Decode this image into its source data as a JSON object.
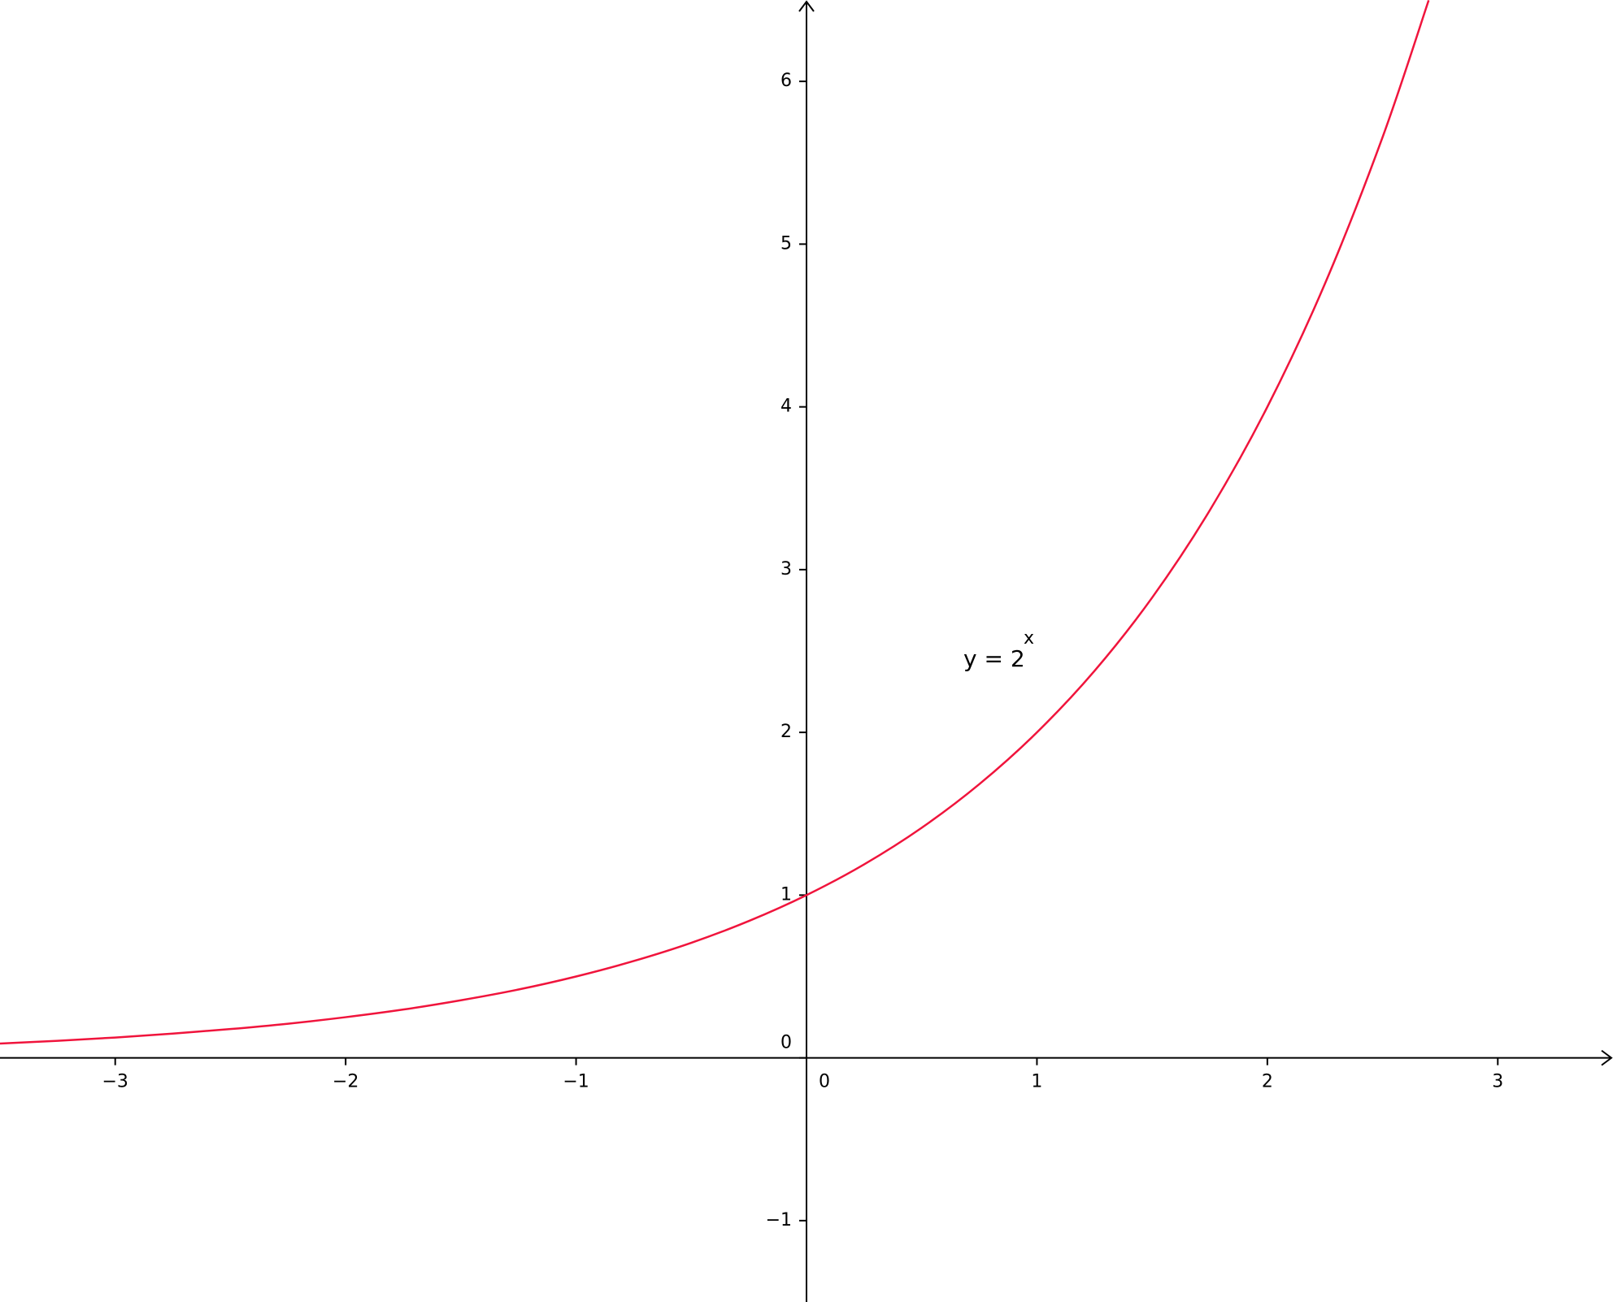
{
  "chart_data": {
    "type": "line",
    "x": [
      -3.5,
      -3.25,
      -3,
      -2.75,
      -2.5,
      -2.25,
      -2,
      -1.75,
      -1.5,
      -1.25,
      -1,
      -0.75,
      -0.5,
      -0.25,
      0,
      0.25,
      0.5,
      0.75,
      1,
      1.25,
      1.5,
      1.75,
      2,
      2.25,
      2.5,
      2.7
    ],
    "series": [
      {
        "color": "#f0143c",
        "values": [
          0.088,
          0.105,
          0.125,
          0.149,
          0.177,
          0.21,
          0.25,
          0.297,
          0.354,
          0.42,
          0.5,
          0.595,
          0.707,
          0.841,
          1,
          1.189,
          1.414,
          1.682,
          2,
          2.378,
          2.828,
          3.364,
          4,
          4.757,
          5.657,
          6.498
        ]
      }
    ],
    "annotation": {
      "text": "y = 2",
      "exponent": "x"
    },
    "xlim": [
      -3.5,
      3.5
    ],
    "ylim": [
      -1.5,
      6.5
    ],
    "xticks": [
      {
        "value": -3,
        "label": "−3"
      },
      {
        "value": -2,
        "label": "−2"
      },
      {
        "value": -1,
        "label": "−1"
      },
      0,
      1,
      2,
      3
    ],
    "yticks": [
      {
        "value": -1,
        "label": "−1"
      },
      0,
      1,
      2,
      3,
      4,
      5,
      6
    ],
    "grid": false
  }
}
